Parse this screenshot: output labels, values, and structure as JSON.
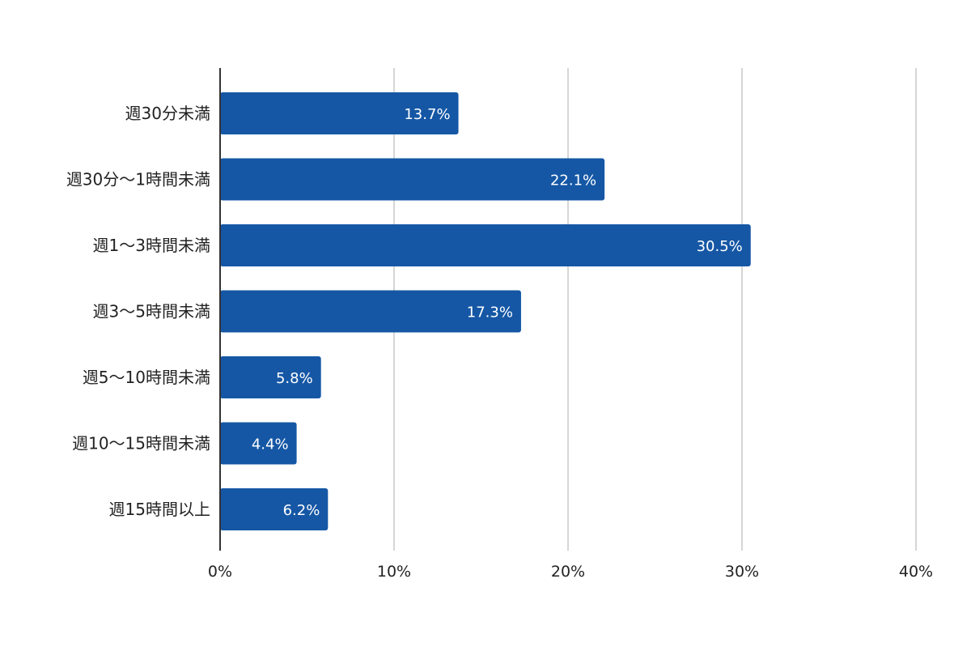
{
  "chart_data": {
    "type": "bar",
    "orientation": "horizontal",
    "title": "",
    "xlabel": "",
    "ylabel": "",
    "categories": [
      "週30分未満",
      "週30分〜1時間未満",
      "週1〜3時間未満",
      "週3〜5時間未満",
      "週5〜10時間未満",
      "週10〜15時間未満",
      "週15時間以上"
    ],
    "values": [
      13.7,
      22.1,
      30.5,
      17.3,
      5.8,
      4.4,
      6.2
    ],
    "data_labels": [
      "13.7%",
      "22.1%",
      "30.5%",
      "17.3%",
      "5.8%",
      "4.4%",
      "6.2%"
    ],
    "xlim": [
      0,
      40
    ],
    "x_ticks": [
      0,
      10,
      20,
      30,
      40
    ],
    "x_tick_labels": [
      "0%",
      "10%",
      "20%",
      "30%",
      "40%"
    ],
    "grid": "vertical",
    "legend": "none",
    "bar_color": "#1557A5",
    "grid_color": "#C8C8C8",
    "axis_color": "#333333"
  }
}
